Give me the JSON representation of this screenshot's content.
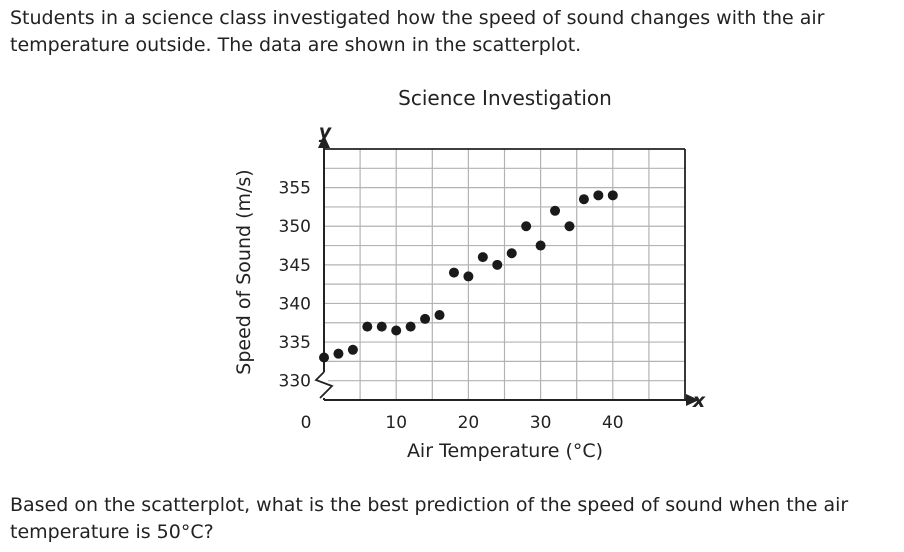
{
  "prompt": "Students in a science class investigated how the speed of sound changes with the air temperature outside. The data are shown in the scatterplot.",
  "question": "Based on the scatterplot, what is the best prediction of the speed of sound when the air temperature is 50°C?",
  "chart_data": {
    "type": "scatter",
    "title": "Science Investigation",
    "xlabel": "Air Temperature (°C)",
    "ylabel": "Speed of Sound (m/s)",
    "x_axis_letter": "x",
    "y_axis_letter": "y",
    "xlim": [
      0,
      50
    ],
    "ylim": [
      327.5,
      360
    ],
    "x_ticks": [
      0,
      10,
      20,
      30,
      40
    ],
    "y_ticks": [
      330,
      335,
      340,
      345,
      350,
      355
    ],
    "y_axis_break": true,
    "grid": true,
    "points": [
      {
        "x": 0,
        "y": 333
      },
      {
        "x": 2,
        "y": 333.5
      },
      {
        "x": 4,
        "y": 334
      },
      {
        "x": 6,
        "y": 337
      },
      {
        "x": 8,
        "y": 337
      },
      {
        "x": 10,
        "y": 336.5
      },
      {
        "x": 12,
        "y": 337
      },
      {
        "x": 14,
        "y": 338
      },
      {
        "x": 16,
        "y": 338.5
      },
      {
        "x": 18,
        "y": 344
      },
      {
        "x": 20,
        "y": 343.5
      },
      {
        "x": 22,
        "y": 346
      },
      {
        "x": 24,
        "y": 345
      },
      {
        "x": 26,
        "y": 346.5
      },
      {
        "x": 28,
        "y": 350
      },
      {
        "x": 30,
        "y": 347.5
      },
      {
        "x": 32,
        "y": 352
      },
      {
        "x": 34,
        "y": 350
      },
      {
        "x": 36,
        "y": 353.5
      },
      {
        "x": 38,
        "y": 354
      },
      {
        "x": 40,
        "y": 354
      }
    ]
  }
}
